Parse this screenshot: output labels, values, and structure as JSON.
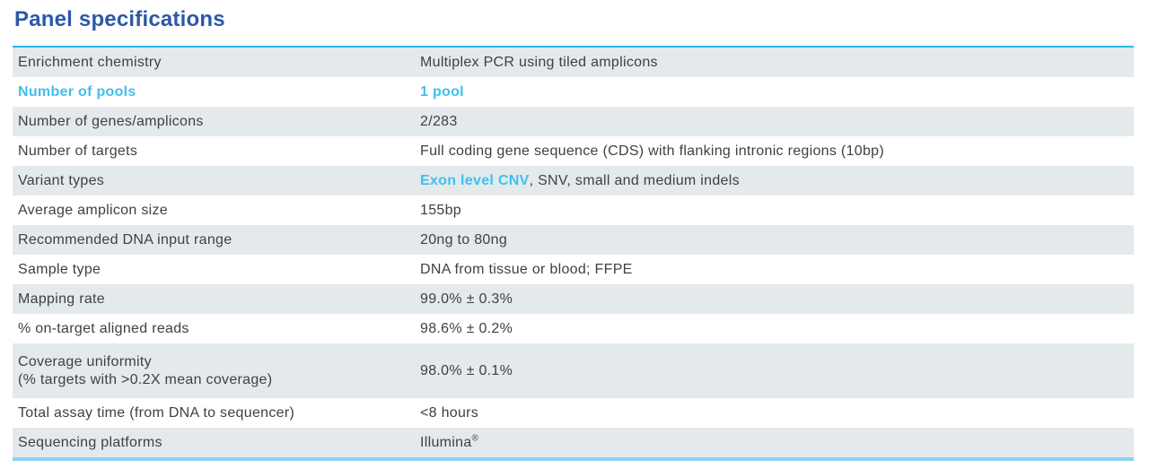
{
  "page": {
    "title": "Panel specifications"
  },
  "colors": {
    "title_blue": "#2b58a8",
    "accent_cyan": "#3fbfef",
    "table_top_border": "#2cb5e8",
    "table_bottom_border": "#8ad2f1",
    "row_stripe_gray": "#e4e9ec",
    "body_text": "#404042"
  },
  "table": {
    "rows": [
      {
        "label": "Enrichment chemistry",
        "value": "Multiplex PCR using tiled amplicons"
      },
      {
        "label": "Number of pools",
        "value": "1 pool"
      },
      {
        "label": "Number of genes/amplicons",
        "value": "2/283"
      },
      {
        "label": "Number of targets",
        "value": "Full coding gene sequence (CDS) with flanking intronic regions (10bp)"
      },
      {
        "label": "Variant types",
        "value_highlight": "Exon level CNV",
        "value_rest": ", SNV, small and medium indels"
      },
      {
        "label": "Average amplicon size",
        "value": "155bp"
      },
      {
        "label": "Recommended DNA input range",
        "value": "20ng to 80ng"
      },
      {
        "label": "Sample type",
        "value": "DNA from tissue or blood; FFPE"
      },
      {
        "label": "Mapping rate",
        "value": "99.0% ± 0.3%"
      },
      {
        "label": "% on-target aligned reads",
        "value": "98.6% ± 0.2%"
      },
      {
        "label": "Coverage uniformity",
        "label_line2": "(% targets with >0.2X mean coverage)",
        "value": "98.0% ± 0.1%"
      },
      {
        "label": "Total assay time (from DNA to sequencer)",
        "value": "<8 hours"
      },
      {
        "label": "Sequencing platforms",
        "value": "Illumina",
        "value_sup": "®"
      }
    ]
  }
}
